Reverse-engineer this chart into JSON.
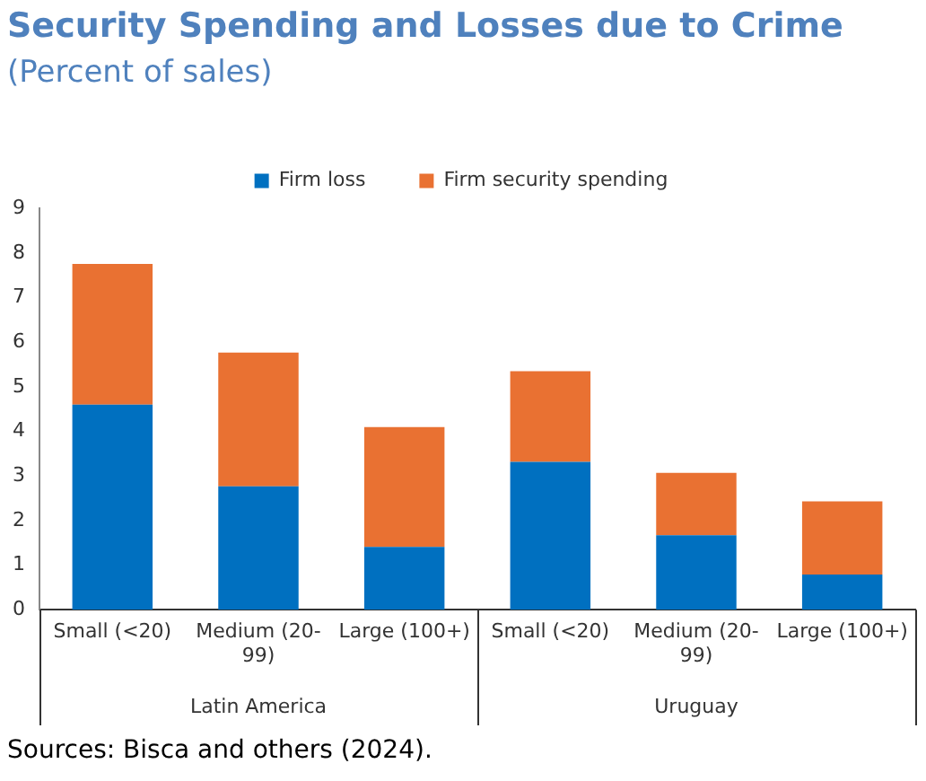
{
  "chart_data": {
    "type": "bar",
    "title": "Security Spending and Losses due to Crime",
    "subtitle": "(Percent of sales)",
    "categories": [
      "Small (<20)",
      "Medium (20-99)",
      "Large (100+)",
      "Small (<20)",
      "Medium (20-99)",
      "Large (100+)"
    ],
    "series": [
      {
        "name": "Firm loss",
        "color": "#0070c0",
        "values": [
          4.6,
          2.77,
          1.41,
          3.32,
          1.67,
          0.79
        ]
      },
      {
        "name": "Firm security spending",
        "color": "#e97132",
        "values": [
          3.16,
          3.0,
          2.69,
          2.03,
          1.4,
          1.64
        ]
      }
    ],
    "stacked": true,
    "ylim": [
      0,
      9
    ],
    "yticks": [
      0,
      1,
      2,
      3,
      4,
      5,
      6,
      7,
      8,
      9
    ],
    "grid": false,
    "legend": "top",
    "annotations": [
      "Latin America",
      "Uruguay",
      "Sources: Bisca and others (2024)."
    ]
  }
}
